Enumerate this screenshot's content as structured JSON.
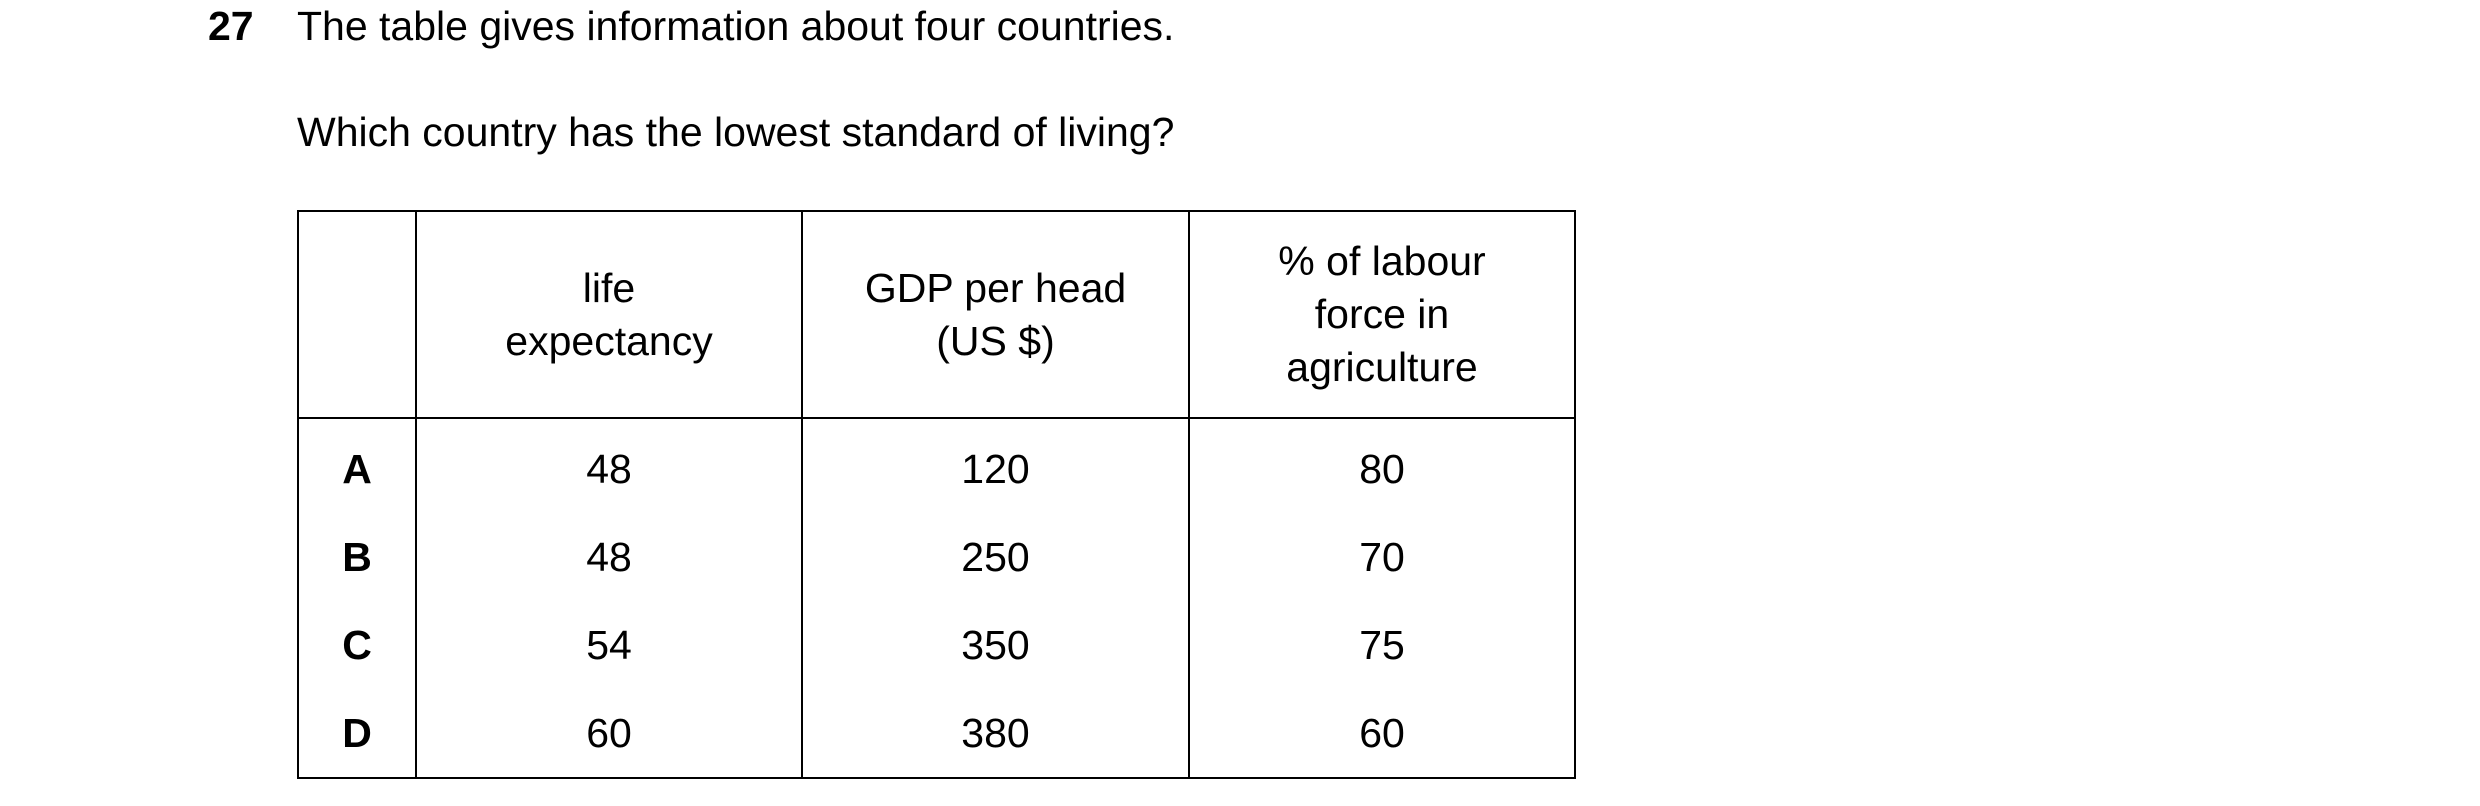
{
  "question": {
    "number": "27",
    "text": "The table gives information about four countries.",
    "prompt": "Which country has the lowest standard of living?"
  },
  "table": {
    "headers": [
      [
        "life",
        "expectancy"
      ],
      [
        "GDP per head",
        "(US $)"
      ],
      [
        "% of labour",
        "force in",
        "agriculture"
      ]
    ],
    "rows": [
      [
        "A",
        48,
        120,
        80
      ],
      [
        "B",
        48,
        250,
        70
      ],
      [
        "C",
        54,
        350,
        75
      ],
      [
        "D",
        60,
        380,
        60
      ]
    ]
  }
}
